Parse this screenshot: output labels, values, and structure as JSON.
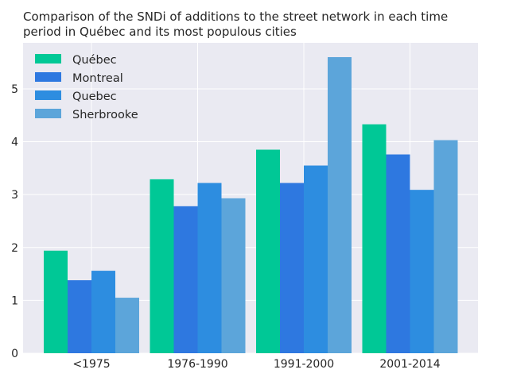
{
  "chart_data": {
    "type": "bar",
    "title_lines": [
      "Comparison of the SNDi of additions to the street network in each time",
      "period in Québec and its most populous cities"
    ],
    "xlabel": "",
    "ylabel": "",
    "categories": [
      "<1975",
      "1976-1990",
      "1991-2000",
      "2001-2014"
    ],
    "series": [
      {
        "name": "Québec",
        "color": "#00c896",
        "values": [
          1.94,
          3.29,
          3.85,
          4.33
        ]
      },
      {
        "name": "Montreal",
        "color": "#2e78e0",
        "values": [
          1.38,
          2.78,
          3.22,
          3.76
        ]
      },
      {
        "name": "Quebec",
        "color": "#2d8de0",
        "values": [
          1.56,
          3.22,
          3.55,
          3.09
        ]
      },
      {
        "name": "Sherbrooke",
        "color": "#5ca5da",
        "values": [
          1.05,
          2.93,
          5.6,
          4.03
        ]
      }
    ],
    "ylim": [
      0,
      5.87
    ],
    "yticks": [
      "0",
      "1",
      "2",
      "3",
      "4",
      "5"
    ],
    "grid": true,
    "legend_position": "top-left",
    "background": "#eaeaf2"
  }
}
